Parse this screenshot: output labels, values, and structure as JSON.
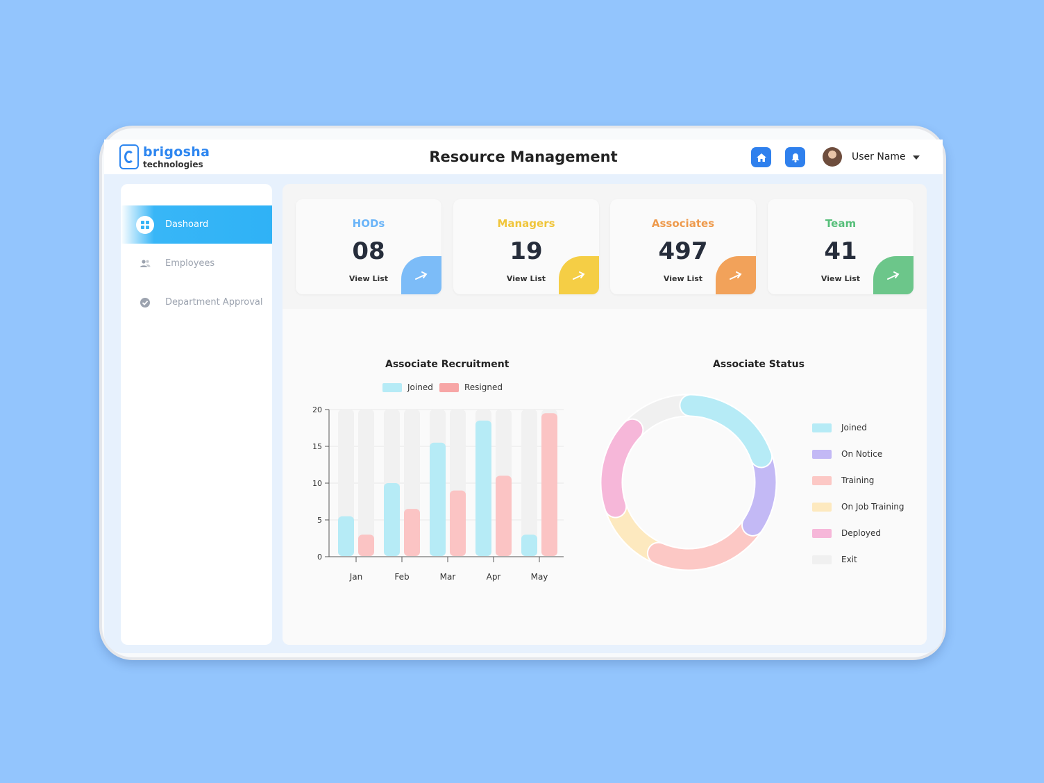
{
  "app": {
    "logo_name": "brigosha",
    "logo_sub": "technologies",
    "title": "Resource Management",
    "user_name": "User Name"
  },
  "nav": [
    {
      "label": "Dashoard",
      "icon": "grid-icon",
      "active": true
    },
    {
      "label": "Employees",
      "icon": "users-icon",
      "active": false
    },
    {
      "label": "Department Approval",
      "icon": "check-circle-icon",
      "active": false
    }
  ],
  "cards": [
    {
      "label": "HODs",
      "value": "08",
      "link": "View List",
      "color": "#6ab4f8",
      "arrow_color": "#7cbcf8"
    },
    {
      "label": "Managers",
      "value": "19",
      "link": "View List",
      "color": "#f0c53a",
      "arrow_color": "#f5ce45"
    },
    {
      "label": "Associates",
      "value": "497",
      "link": "View List",
      "color": "#ee9a4c",
      "arrow_color": "#f2a25a"
    },
    {
      "label": "Team",
      "value": "41",
      "link": "View List",
      "color": "#56bf7a",
      "arrow_color": "#6cc68a"
    }
  ],
  "chart_data": [
    {
      "type": "bar",
      "title": "Associate Recruitment",
      "categories": [
        "Jan",
        "Feb",
        "Mar",
        "Apr",
        "May"
      ],
      "series": [
        {
          "name": "Joined",
          "color": "#b6ebf6",
          "values": [
            5.5,
            10,
            15.5,
            18.5,
            3
          ]
        },
        {
          "name": "Resigned",
          "color": "#fbc4c4",
          "values": [
            3,
            6.5,
            9,
            11,
            19.5
          ]
        }
      ],
      "legend_colors": [
        "#b6ebf6",
        "#f7a6a6"
      ],
      "yticks": [
        "0",
        "5",
        "10",
        "15",
        "20"
      ],
      "ylim": [
        0,
        20
      ],
      "xlabel": "",
      "ylabel": ""
    },
    {
      "type": "pie",
      "title": "Associate Status",
      "labels": [
        "Joined",
        "On Notice",
        "Training",
        "On Job Training",
        "Deployed",
        "Exit"
      ],
      "values": [
        19,
        14,
        21,
        12,
        17,
        12
      ],
      "colors": [
        "#b6ebf6",
        "#c3b9f5",
        "#fcc8c5",
        "#fde9bf",
        "#f6b7d9",
        "#f0f0f0"
      ]
    }
  ]
}
